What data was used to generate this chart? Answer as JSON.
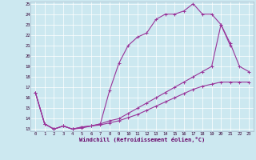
{
  "bg_color": "#cce8f0",
  "line_color": "#993399",
  "xlabel": "Windchill (Refroidissement éolien,°C)",
  "ylim": [
    13,
    25
  ],
  "xlim": [
    -0.5,
    23.5
  ],
  "yticks": [
    13,
    14,
    15,
    16,
    17,
    18,
    19,
    20,
    21,
    22,
    23,
    24,
    25
  ],
  "xticks": [
    0,
    1,
    2,
    3,
    4,
    5,
    6,
    7,
    8,
    9,
    10,
    11,
    12,
    13,
    14,
    15,
    16,
    17,
    18,
    19,
    20,
    21,
    22,
    23
  ],
  "line1_y": [
    16.5,
    13.5,
    13.0,
    13.3,
    13.0,
    13.1,
    13.3,
    13.4,
    13.6,
    13.8,
    14.1,
    14.4,
    14.8,
    15.2,
    15.6,
    16.0,
    16.4,
    16.8,
    17.1,
    17.3,
    17.5,
    17.5,
    17.5,
    17.5
  ],
  "line2_y": [
    16.5,
    13.5,
    13.0,
    13.3,
    13.0,
    13.2,
    13.3,
    13.5,
    16.7,
    19.3,
    21.0,
    21.8,
    22.2,
    23.5,
    24.0,
    24.0,
    24.3,
    25.0,
    24.0,
    24.0,
    23.0,
    21.0,
    null,
    null
  ],
  "line3_y": [
    16.5,
    13.5,
    13.0,
    13.3,
    13.0,
    13.2,
    13.3,
    13.5,
    13.8,
    14.0,
    14.5,
    15.0,
    15.5,
    16.0,
    16.5,
    17.0,
    17.5,
    18.0,
    18.5,
    19.0,
    23.0,
    21.2,
    19.0,
    18.5
  ]
}
